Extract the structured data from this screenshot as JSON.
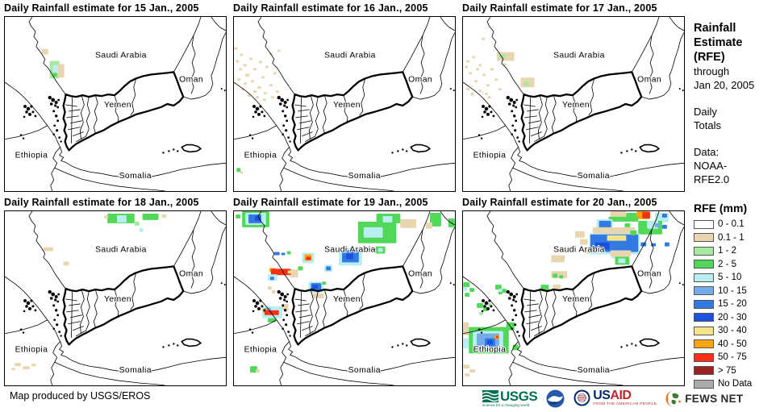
{
  "panels": [
    {
      "id": "jan15",
      "title": "Daily Rainfall estimate for 15 Jan., 2005",
      "rain": [
        [
          46,
          40,
          8,
          7,
          "t"
        ],
        [
          56,
          55,
          12,
          22,
          "g1"
        ],
        [
          60,
          60,
          7,
          10,
          "c"
        ],
        [
          66,
          59,
          8,
          17,
          "t"
        ],
        [
          60,
          70,
          5,
          5,
          "g2"
        ]
      ]
    },
    {
      "id": "jan16",
      "title": "Daily Rainfall estimate for 16 Jan., 2005",
      "rain": [
        [
          0,
          38,
          4,
          3,
          "t"
        ],
        [
          7,
          46,
          4,
          3,
          "t"
        ],
        [
          2,
          54,
          4,
          3,
          "t"
        ],
        [
          11,
          59,
          5,
          3,
          "t"
        ],
        [
          19,
          51,
          4,
          3,
          "t"
        ],
        [
          24,
          64,
          4,
          3,
          "t"
        ],
        [
          14,
          71,
          5,
          4,
          "t"
        ],
        [
          4,
          77,
          4,
          3,
          "t"
        ],
        [
          21,
          79,
          4,
          3,
          "t"
        ],
        [
          29,
          87,
          5,
          3,
          "t"
        ],
        [
          9,
          89,
          4,
          3,
          "t"
        ],
        [
          17,
          97,
          4,
          3,
          "t"
        ],
        [
          27,
          99,
          4,
          3,
          "t"
        ],
        [
          34,
          74,
          4,
          3,
          "t"
        ],
        [
          39,
          61,
          4,
          3,
          "t"
        ],
        [
          44,
          84,
          4,
          3,
          "t"
        ],
        [
          37,
          94,
          4,
          3,
          "t"
        ],
        [
          49,
          69,
          4,
          3,
          "t"
        ],
        [
          31,
          55,
          4,
          3,
          "t"
        ],
        [
          44,
          45,
          4,
          3,
          "t"
        ],
        [
          52,
          92,
          4,
          3,
          "t"
        ],
        [
          24,
          92,
          4,
          3,
          "t"
        ],
        [
          12,
          82,
          4,
          3,
          "t"
        ],
        [
          6,
          64,
          4,
          3,
          "t"
        ],
        [
          36,
          102,
          4,
          3,
          "t"
        ],
        [
          46,
          99,
          4,
          3,
          "t"
        ],
        [
          54,
          41,
          4,
          3,
          "t"
        ],
        [
          3,
          189,
          5,
          5,
          "g2"
        ],
        [
          7,
          193,
          4,
          3,
          "t"
        ]
      ]
    },
    {
      "id": "jan17",
      "title": "Daily Rainfall estimate for 17 Jan., 2005",
      "rain": [
        [
          23,
          26,
          4,
          3,
          "t"
        ],
        [
          4,
          54,
          4,
          3,
          "t"
        ],
        [
          11,
          49,
          4,
          3,
          "t"
        ],
        [
          19,
          59,
          4,
          3,
          "t"
        ],
        [
          7,
          69,
          4,
          3,
          "t"
        ],
        [
          24,
          71,
          4,
          3,
          "t"
        ],
        [
          14,
          79,
          4,
          3,
          "t"
        ],
        [
          29,
          84,
          4,
          3,
          "t"
        ],
        [
          4,
          89,
          4,
          3,
          "t"
        ],
        [
          34,
          64,
          4,
          3,
          "t"
        ],
        [
          39,
          77,
          4,
          3,
          "t"
        ],
        [
          44,
          89,
          4,
          3,
          "t"
        ],
        [
          19,
          91,
          4,
          3,
          "t"
        ],
        [
          27,
          95,
          4,
          3,
          "t"
        ],
        [
          9,
          95,
          4,
          3,
          "t"
        ],
        [
          16,
          64,
          4,
          3,
          "t"
        ],
        [
          31,
          99,
          4,
          3,
          "t"
        ],
        [
          2,
          61,
          4,
          3,
          "t"
        ],
        [
          50,
          58,
          4,
          3,
          "t"
        ],
        [
          58,
          52,
          4,
          3,
          "t"
        ],
        [
          42,
          44,
          22,
          11,
          "t"
        ],
        [
          45,
          47,
          8,
          5,
          "g1"
        ],
        [
          72,
          76,
          17,
          12,
          "t"
        ],
        [
          76,
          81,
          6,
          5,
          "g1"
        ]
      ]
    },
    {
      "id": "jan18",
      "title": "Daily Rainfall estimate for 18 Jan., 2005",
      "rain": [
        [
          128,
          3,
          34,
          12,
          "g2"
        ],
        [
          140,
          5,
          12,
          9,
          "c"
        ],
        [
          172,
          3,
          20,
          8,
          "g2"
        ],
        [
          124,
          5,
          5,
          4,
          "t"
        ],
        [
          196,
          4,
          6,
          4,
          "t"
        ],
        [
          162,
          13,
          6,
          5,
          "g1"
        ],
        [
          168,
          21,
          5,
          5,
          "c"
        ],
        [
          48,
          45,
          12,
          5,
          "t"
        ],
        [
          73,
          63,
          7,
          5,
          "t"
        ],
        [
          12,
          190,
          8,
          4,
          "t"
        ],
        [
          22,
          194,
          9,
          4,
          "t"
        ],
        [
          33,
          191,
          6,
          3,
          "t"
        ],
        [
          8,
          196,
          5,
          3,
          "t"
        ]
      ]
    },
    {
      "id": "jan19",
      "title": "Daily Rainfall estimate for 19 Jan., 2005",
      "rain": [
        [
          10,
          0,
          34,
          20,
          "g2"
        ],
        [
          14,
          2,
          26,
          15,
          "c"
        ],
        [
          18,
          4,
          16,
          11,
          "b2"
        ],
        [
          26,
          6,
          7,
          6,
          "b3"
        ],
        [
          2,
          4,
          6,
          5,
          "g2"
        ],
        [
          155,
          13,
          48,
          27,
          "g2"
        ],
        [
          162,
          20,
          24,
          13,
          "c"
        ],
        [
          178,
          3,
          30,
          12,
          "g2"
        ],
        [
          186,
          6,
          12,
          8,
          "c"
        ],
        [
          208,
          10,
          20,
          11,
          "t"
        ],
        [
          245,
          2,
          14,
          17,
          "g2"
        ],
        [
          240,
          14,
          8,
          8,
          "t"
        ],
        [
          268,
          9,
          8,
          11,
          "g2"
        ],
        [
          177,
          44,
          12,
          9,
          "g2"
        ],
        [
          180,
          46,
          6,
          5,
          "c"
        ],
        [
          85,
          52,
          15,
          13,
          "c"
        ],
        [
          88,
          54,
          9,
          8,
          "o"
        ],
        [
          90,
          57,
          6,
          4,
          "r"
        ],
        [
          50,
          51,
          7,
          4,
          "b2"
        ],
        [
          59,
          52,
          5,
          3,
          "b2"
        ],
        [
          66,
          50,
          5,
          4,
          "g2"
        ],
        [
          131,
          46,
          29,
          22,
          "c"
        ],
        [
          135,
          49,
          21,
          15,
          "b2"
        ],
        [
          140,
          53,
          9,
          7,
          "b3"
        ],
        [
          113,
          67,
          10,
          9,
          "c"
        ],
        [
          115,
          69,
          6,
          5,
          "b2"
        ],
        [
          70,
          73,
          10,
          10,
          "t"
        ],
        [
          44,
          71,
          8,
          5,
          "o"
        ],
        [
          46,
          72,
          25,
          8,
          "r"
        ],
        [
          67,
          74,
          5,
          4,
          "y"
        ],
        [
          42,
          79,
          12,
          8,
          "c"
        ],
        [
          45,
          82,
          5,
          4,
          "b2"
        ],
        [
          80,
          69,
          6,
          5,
          "g2"
        ],
        [
          93,
          88,
          19,
          14,
          "c"
        ],
        [
          96,
          90,
          13,
          10,
          "b2"
        ],
        [
          98,
          92,
          7,
          5,
          "b3"
        ],
        [
          98,
          103,
          14,
          6,
          "t"
        ],
        [
          110,
          88,
          5,
          4,
          "g2"
        ],
        [
          42,
          94,
          5,
          4,
          "t"
        ],
        [
          47,
          99,
          5,
          4,
          "t"
        ],
        [
          35,
          119,
          25,
          15,
          "c"
        ],
        [
          38,
          121,
          8,
          5,
          "b1"
        ],
        [
          36,
          122,
          5,
          5,
          "o"
        ],
        [
          38,
          124,
          18,
          6,
          "r"
        ],
        [
          42,
          134,
          10,
          5,
          "g2"
        ],
        [
          60,
          116,
          8,
          8,
          "t"
        ],
        [
          20,
          194,
          9,
          8,
          "g2"
        ],
        [
          27,
          198,
          5,
          4,
          "t"
        ]
      ]
    },
    {
      "id": "jan20",
      "title": "Daily Rainfall estimate for 20 Jan., 2005",
      "rain": [
        [
          184,
          0,
          20,
          7,
          "t"
        ],
        [
          204,
          2,
          13,
          7,
          "g2"
        ],
        [
          217,
          0,
          16,
          10,
          "o"
        ],
        [
          224,
          1,
          10,
          8,
          "r"
        ],
        [
          240,
          2,
          17,
          12,
          "c"
        ],
        [
          249,
          3,
          6,
          5,
          "b2"
        ],
        [
          182,
          7,
          37,
          6,
          "g2"
        ],
        [
          167,
          10,
          20,
          15,
          "c"
        ],
        [
          170,
          12,
          15,
          12,
          "b2"
        ],
        [
          140,
          25,
          12,
          8,
          "t"
        ],
        [
          146,
          35,
          10,
          7,
          "t"
        ],
        [
          152,
          45,
          12,
          8,
          "t"
        ],
        [
          162,
          20,
          53,
          10,
          "t"
        ],
        [
          202,
          15,
          7,
          5,
          "g2"
        ],
        [
          219,
          12,
          30,
          17,
          "g2"
        ],
        [
          230,
          12,
          14,
          10,
          "c"
        ],
        [
          158,
          28,
          63,
          26,
          "c"
        ],
        [
          159,
          29,
          60,
          22,
          "b2"
        ],
        [
          165,
          39,
          18,
          9,
          "b3"
        ],
        [
          180,
          30,
          24,
          7,
          "y"
        ],
        [
          185,
          52,
          20,
          7,
          "c"
        ],
        [
          209,
          24,
          8,
          6,
          "g2"
        ],
        [
          222,
          39,
          7,
          5,
          "b2"
        ],
        [
          235,
          40,
          6,
          4,
          "b2"
        ],
        [
          249,
          17,
          6,
          5,
          "b2"
        ],
        [
          252,
          39,
          6,
          5,
          "b2"
        ],
        [
          240,
          15,
          6,
          5,
          "b1"
        ],
        [
          190,
          57,
          18,
          10,
          "g2"
        ],
        [
          194,
          59,
          9,
          6,
          "c"
        ],
        [
          184,
          49,
          26,
          8,
          "t"
        ],
        [
          110,
          55,
          17,
          9,
          "t"
        ],
        [
          110,
          75,
          20,
          9,
          "t"
        ],
        [
          112,
          78,
          6,
          5,
          "g2"
        ],
        [
          120,
          80,
          5,
          4,
          "g2"
        ],
        [
          97,
          92,
          10,
          8,
          "g2"
        ],
        [
          112,
          92,
          10,
          7,
          "t"
        ],
        [
          0,
          89,
          8,
          6,
          "g2"
        ],
        [
          8,
          96,
          6,
          5,
          "g2"
        ],
        [
          2,
          102,
          6,
          5,
          "g2"
        ],
        [
          0,
          95,
          5,
          5,
          "c"
        ],
        [
          40,
          92,
          8,
          6,
          "g2"
        ],
        [
          48,
          97,
          6,
          5,
          "g2"
        ],
        [
          44,
          100,
          5,
          4,
          "g2"
        ],
        [
          44,
          97,
          5,
          4,
          "c"
        ],
        [
          17,
          115,
          8,
          6,
          "g2"
        ],
        [
          25,
          120,
          6,
          5,
          "g2"
        ],
        [
          20,
          126,
          5,
          4,
          "g1"
        ],
        [
          30,
          115,
          5,
          4,
          "g1"
        ],
        [
          0,
          139,
          7,
          16,
          "t"
        ],
        [
          7,
          145,
          50,
          33,
          "g2"
        ],
        [
          12,
          150,
          38,
          23,
          "c"
        ],
        [
          17,
          153,
          28,
          17,
          "b1"
        ],
        [
          27,
          159,
          13,
          10,
          "b2"
        ],
        [
          30,
          161,
          7,
          6,
          "b3"
        ],
        [
          39,
          155,
          6,
          5,
          "o"
        ],
        [
          41,
          156,
          3,
          3,
          "r"
        ],
        [
          0,
          159,
          7,
          13,
          "c"
        ],
        [
          54,
          139,
          10,
          10,
          "g2"
        ],
        [
          62,
          167,
          7,
          7,
          "g2"
        ],
        [
          0,
          192,
          8,
          5,
          "t"
        ],
        [
          8,
          198,
          7,
          4,
          "t"
        ],
        [
          2,
          203,
          6,
          4,
          "t"
        ]
      ]
    }
  ],
  "map_labels": {
    "saudi_arabia": "Saudi Arabia",
    "oman": "Oman",
    "yemen": "Yemen",
    "ethiopia": "Ethiopia",
    "somalia": "Somalia"
  },
  "sidebar": {
    "title_line1": "Rainfall",
    "title_line2": "Estimate",
    "title_line3": "(RFE)",
    "through": "through",
    "date": "Jan 20, 2005",
    "daily": "Daily",
    "totals": "Totals",
    "data_label": "Data:",
    "source_line1": "NOAA-",
    "source_line2": "RFE2.0"
  },
  "legend": {
    "title": "RFE (mm)",
    "entries": [
      {
        "label": "0 - 0.1",
        "color": "#FFFFFF"
      },
      {
        "label": "0.1 - 1",
        "color": "#E7D6B0"
      },
      {
        "label": "1 - 2",
        "color": "#A8E8A0"
      },
      {
        "label": "2 - 5",
        "color": "#52D858"
      },
      {
        "label": "5 - 10",
        "color": "#B8EDF2"
      },
      {
        "label": "10 - 15",
        "color": "#74ABE8"
      },
      {
        "label": "15 - 20",
        "color": "#3379E3"
      },
      {
        "label": "20 - 30",
        "color": "#1C50DE"
      },
      {
        "label": "30 - 40",
        "color": "#F5E488"
      },
      {
        "label": "40 - 50",
        "color": "#FFA312"
      },
      {
        "label": "50 - 75",
        "color": "#F83014"
      },
      {
        "label": "> 75",
        "color": "#9B2222"
      },
      {
        "label": "No Data",
        "color": "#ACACAC"
      }
    ]
  },
  "rain_palette": {
    "t": "#E7D6B0",
    "g1": "#A8E8A0",
    "g2": "#52D858",
    "c": "#B8EDF2",
    "b1": "#74ABE8",
    "b2": "#3379E3",
    "b3": "#1C50DE",
    "y": "#F5E488",
    "o": "#FFA312",
    "r": "#F83014",
    "dr": "#9B2222",
    "nd": "#ACACAC"
  },
  "footer": {
    "credit": "Map produced by USGS/EROS"
  },
  "logos": {
    "usgs_text": "USGS",
    "usgs_tagline": "science for a changing world",
    "usaid_us": "US",
    "usaid_aid": "AID",
    "usaid_tagline": "FROM THE AMERICAN PEOPLE",
    "fews_text": "FEWS NET"
  }
}
